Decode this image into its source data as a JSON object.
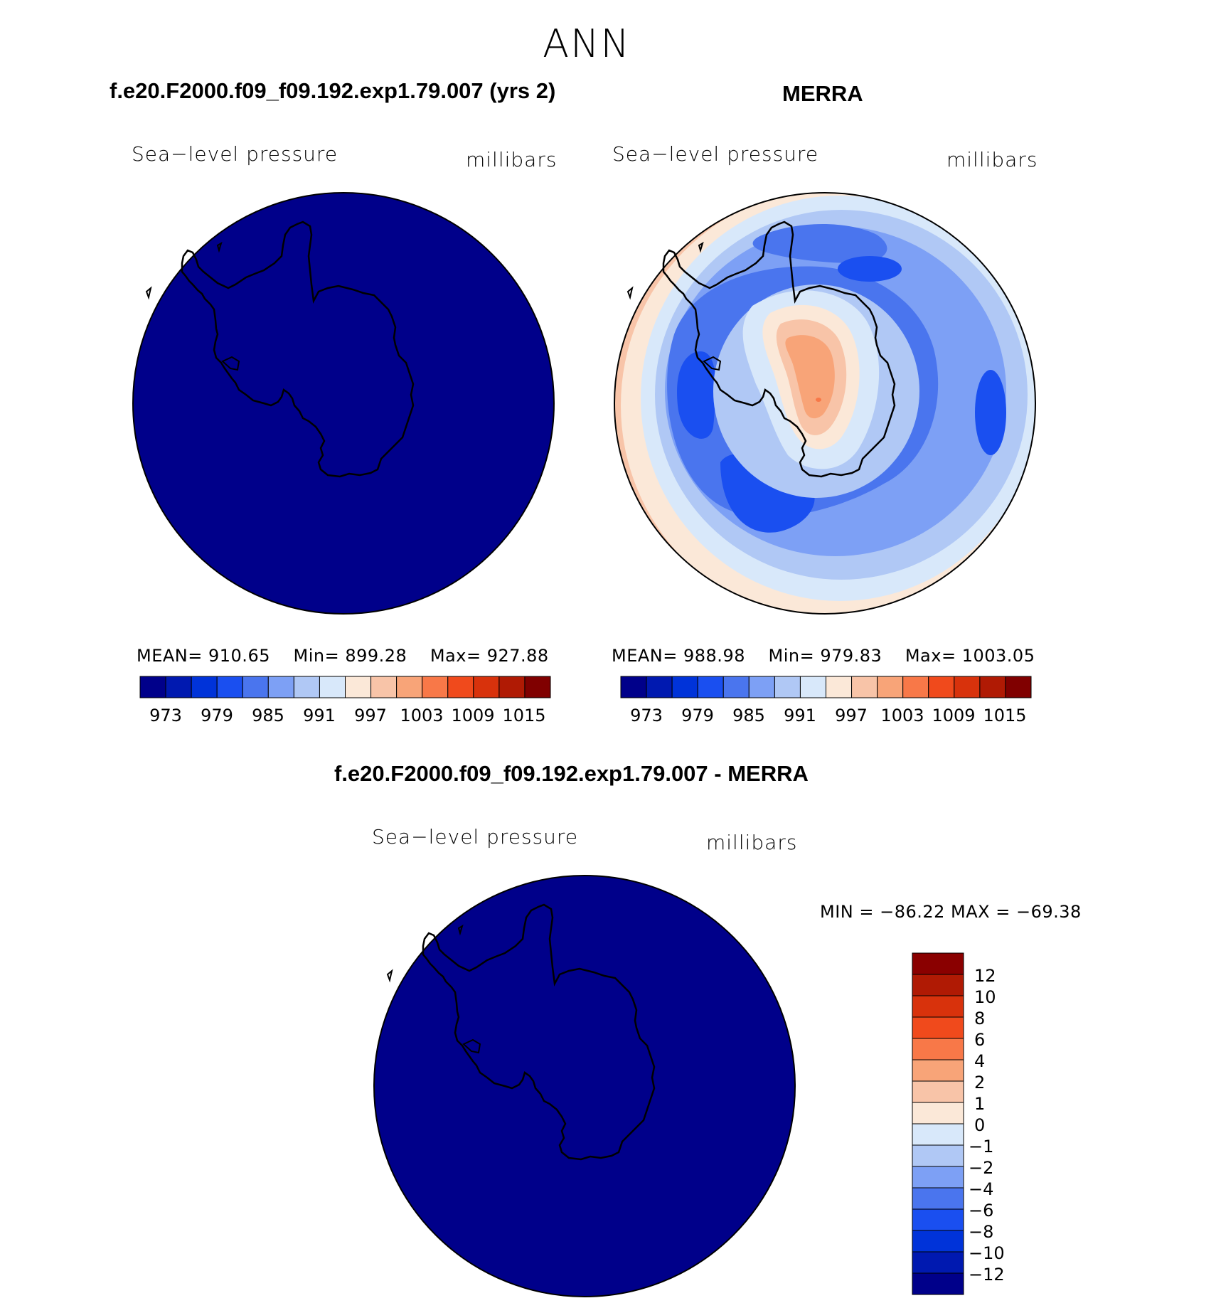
{
  "figure": {
    "title": "ANN",
    "panels": [
      {
        "id": "model",
        "title": "f.e20.F2000.f09_f09.192.exp1.79.007 (yrs 2)",
        "variable": "Sea−level pressure",
        "units": "millibars",
        "stats": {
          "mean_label": "MEAN=",
          "mean": "910.65",
          "min_label": "Min=",
          "min": "899.28",
          "max_label": "Max=",
          "max": "927.88"
        }
      },
      {
        "id": "obs",
        "title": "MERRA",
        "variable": "Sea−level pressure",
        "units": "millibars",
        "stats": {
          "mean_label": "MEAN=",
          "mean": "988.98",
          "min_label": "Min=",
          "min": "979.83",
          "max_label": "Max=",
          "max": "1003.05"
        }
      },
      {
        "id": "diff",
        "title": "f.e20.F2000.f09_f09.192.exp1.79.007 - MERRA",
        "variable": "Sea−level pressure",
        "units": "millibars",
        "minmax": "MIN = −86.22 MAX = −69.38"
      }
    ],
    "colorbar_h": {
      "tick_labels": [
        "973",
        "979",
        "985",
        "991",
        "997",
        "1003",
        "1009",
        "1015"
      ],
      "colors": [
        "#00008a",
        "#0019b0",
        "#0033d9",
        "#1a4ff0",
        "#4a75ee",
        "#7da0f5",
        "#b0c8f5",
        "#d8e8fa",
        "#fbe8d8",
        "#f8c4a8",
        "#f8a478",
        "#f87848",
        "#f04a1c",
        "#d8320c",
        "#b01a04",
        "#800000"
      ]
    },
    "colorbar_v": {
      "tick_labels": [
        "12",
        "10",
        "8",
        "6",
        "4",
        "2",
        "1",
        "0",
        "−1",
        "−2",
        "−4",
        "−6",
        "−8",
        "−10",
        "−12"
      ],
      "colors_top_to_bottom": [
        "#8a0000",
        "#b01a04",
        "#d8320c",
        "#f04a1c",
        "#f87848",
        "#f8a478",
        "#f8c4a8",
        "#fbe8d8",
        "#d8e8fa",
        "#b0c8f5",
        "#7da0f5",
        "#4a75ee",
        "#1a4ff0",
        "#0033d9",
        "#0019b0",
        "#00008a"
      ]
    },
    "map_fill_color": "#00008a"
  }
}
